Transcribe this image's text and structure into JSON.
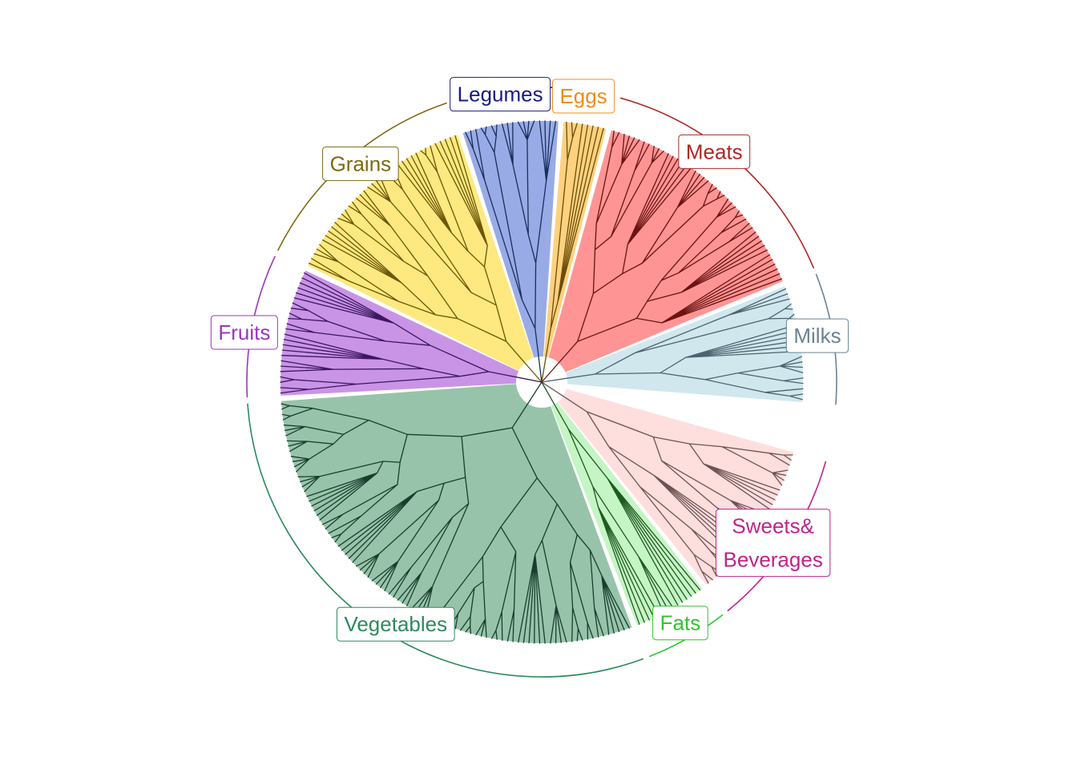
{
  "diagram": {
    "type": "circular-dendrogram",
    "groups": [
      {
        "id": "grains",
        "label_lines": [
          "Grains"
        ],
        "leaves": 38,
        "fill": "#fde97f",
        "line": "#6b5707",
        "label_color": "#7d6a10"
      },
      {
        "id": "legumes",
        "label_lines": [
          "Legumes"
        ],
        "leaves": 18,
        "fill": "#99abe6",
        "line": "#182f5a",
        "label_color": "#1a1a86"
      },
      {
        "id": "eggs",
        "label_lines": [
          "Eggs"
        ],
        "leaves": 8,
        "fill": "#fed17f",
        "line": "#6b4d07",
        "label_color": "#f08c17"
      },
      {
        "id": "meats",
        "label_lines": [
          "Meats"
        ],
        "leaves": 44,
        "fill": "#fe9594",
        "line": "#6b1313",
        "label_color": "#b02827"
      },
      {
        "id": "milks",
        "label_lines": [
          "Milks"
        ],
        "leaves": 22,
        "fill": "#d1e7ee",
        "line": "#4d6470",
        "label_color": "#6b8492"
      },
      {
        "id": "sweets",
        "label_lines": [
          "Sweets&",
          "Beverages"
        ],
        "leaves": 30,
        "fill": "#ffdede",
        "line": "#6e5454",
        "label_color": "#c0248a"
      },
      {
        "id": "fats",
        "label_lines": [
          "Fats"
        ],
        "leaves": 14,
        "fill": "#c5f4c5",
        "line": "#1f5a1f",
        "label_color": "#31c431"
      },
      {
        "id": "vegetables",
        "label_lines": [
          "Vegetables"
        ],
        "leaves": 90,
        "fill": "#98c3ab",
        "line": "#183e2c",
        "label_color": "#2b8a5e"
      },
      {
        "id": "fruits",
        "label_lines": [
          "Fruits"
        ],
        "leaves": 24,
        "fill": "#c994e6",
        "line": "#3d1660",
        "label_color": "#9a35c0"
      }
    ]
  }
}
